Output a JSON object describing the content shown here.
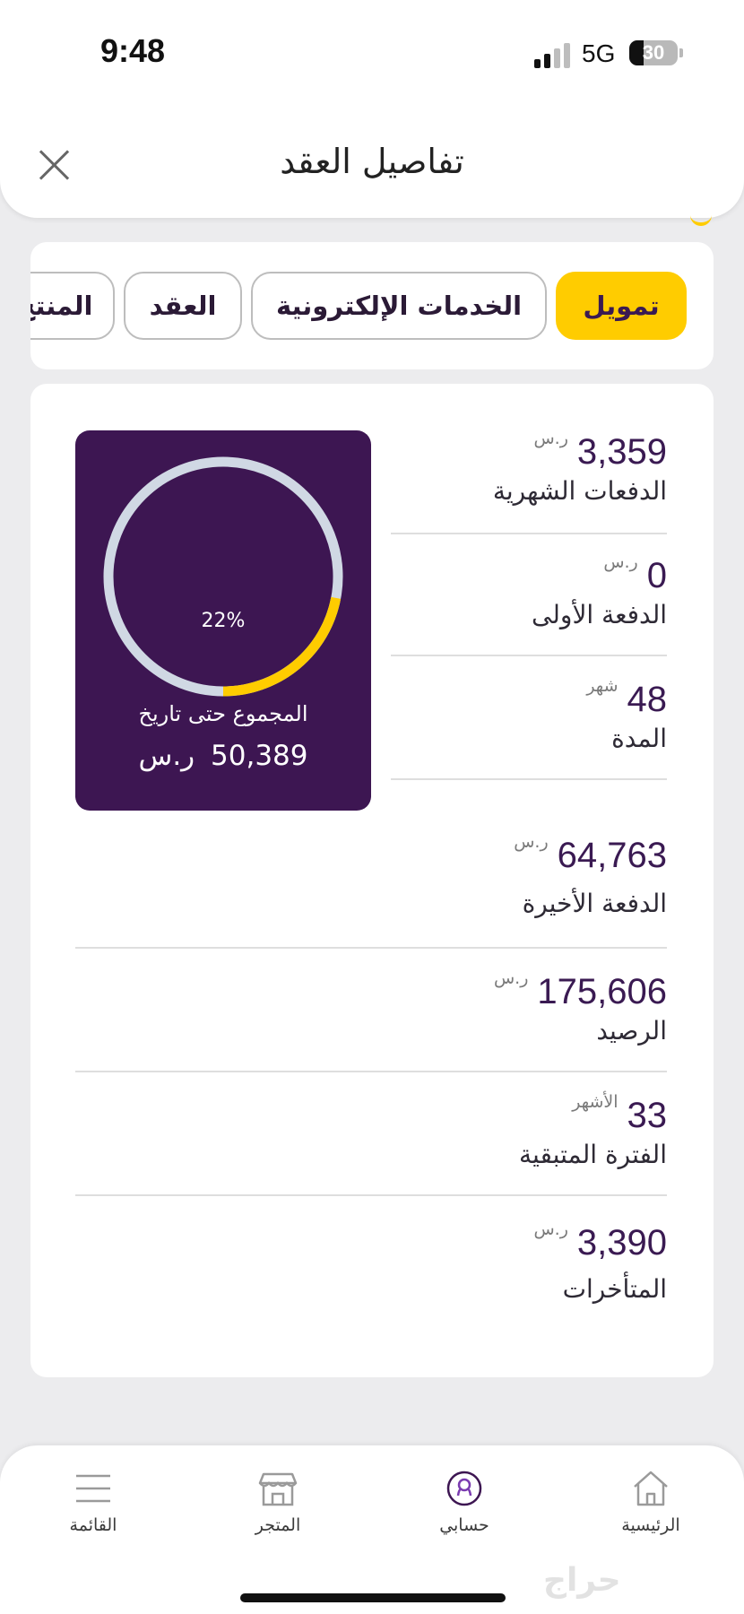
{
  "status_bar": {
    "time": "9:48",
    "network": "5G",
    "battery": "30",
    "battery_level": 0.3
  },
  "header": {
    "title": "تفاصيل العقد",
    "close_icon": "close-icon"
  },
  "tabs": [
    {
      "label": "تمويل",
      "active": true
    },
    {
      "label": "الخدمات الإلكترونية",
      "active": false
    },
    {
      "label": "العقد",
      "active": false
    },
    {
      "label": "المنتج",
      "active": false
    }
  ],
  "progress": {
    "percent_label": "22%",
    "fraction": 0.22,
    "label": "المجموع حتى تاريخ",
    "total_value": "50,389",
    "total_currency": "ر.س",
    "ring_track_color": "#d0d8e4",
    "ring_fill_color": "#ffcc00",
    "box_color": "#3d1652"
  },
  "stats": [
    {
      "value": "3,359",
      "unit": "ر.س",
      "label": "الدفعات الشهرية"
    },
    {
      "value": "0",
      "unit": "ر.س",
      "label": "الدفعة الأولى"
    },
    {
      "value": "48",
      "unit": "شهر",
      "label": "المدة"
    },
    {
      "value": "64,763",
      "unit": "ر.س",
      "label": "الدفعة الأخيرة"
    },
    {
      "value": "175,606",
      "unit": "ر.س",
      "label": "الرصيد"
    },
    {
      "value": "33",
      "unit": "الأشهر",
      "label": "الفترة المتبقية"
    },
    {
      "value": "3,390",
      "unit": "ر.س",
      "label": "المتأخرات"
    }
  ],
  "bottom_nav": [
    {
      "label": "الرئيسية",
      "icon": "home-icon"
    },
    {
      "label": "حسابي",
      "icon": "account-icon"
    },
    {
      "label": "المتجر",
      "icon": "store-icon"
    },
    {
      "label": "القائمة",
      "icon": "menu-icon"
    }
  ],
  "watermark": "حراج"
}
